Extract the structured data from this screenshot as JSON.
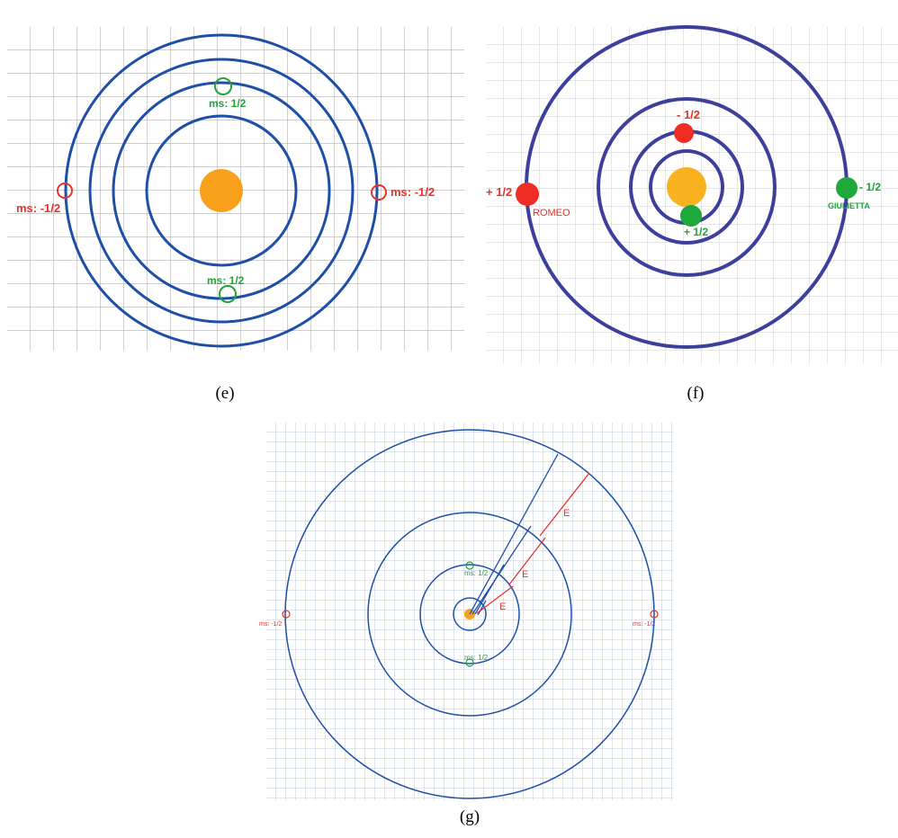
{
  "panels": [
    {
      "label": "(e)",
      "annotations": [
        "ms: 1/2",
        "ms: -1/2",
        "ms: -1/2",
        "ms: 1/2"
      ]
    },
    {
      "label": "(f)",
      "annotations": [
        "- 1/2",
        "+ 1/2",
        "ROMEO",
        "- 1/2",
        "GIULIETTA",
        "+ 1/2"
      ]
    },
    {
      "label": "(g)",
      "annotations": [
        "E",
        "E",
        "E",
        "ms: 1/2",
        "ms: -1/2",
        "ms: -1/2",
        "ms: 1/2"
      ]
    }
  ]
}
